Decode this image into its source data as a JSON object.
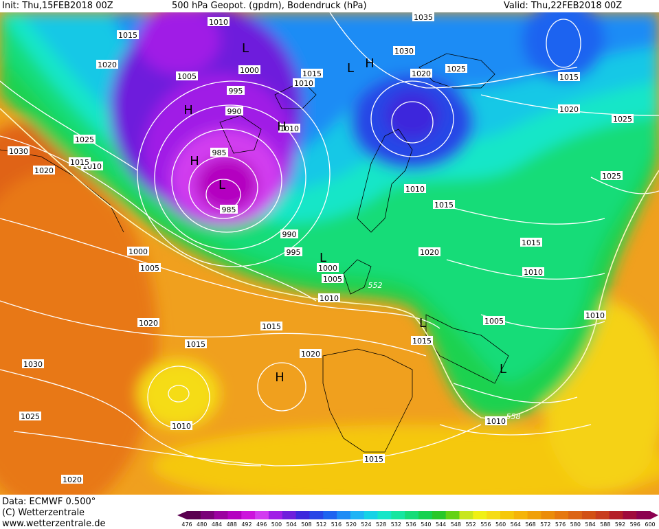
{
  "header": {
    "init": "Init: Thu,15FEB2018 00Z",
    "title": "500 hPa Geopot. (gpdm), Bodendruck (hPa)",
    "valid": "Valid: Thu,22FEB2018 00Z"
  },
  "footer": {
    "data_line": "Data: ECMWF   0.500°",
    "copyright": "(C) Wetterzentrale",
    "url": "www.wetterzentrale.de"
  },
  "colorbar": {
    "values": [
      476,
      480,
      484,
      488,
      492,
      496,
      500,
      504,
      508,
      512,
      516,
      520,
      524,
      528,
      532,
      536,
      540,
      544,
      548,
      552,
      556,
      560,
      564,
      568,
      572,
      576,
      580,
      584,
      588,
      592,
      596,
      600
    ],
    "colors": [
      "#5a0050",
      "#7a0078",
      "#9b00a0",
      "#b400c0",
      "#cc14dc",
      "#d23cf0",
      "#a01ee6",
      "#6e1edc",
      "#3c28dc",
      "#2846e6",
      "#1e64f0",
      "#1e8cf5",
      "#1eb4f5",
      "#14d2e6",
      "#14e6c8",
      "#14e6a0",
      "#14dc78",
      "#14d250",
      "#28c828",
      "#64d214",
      "#c8e61e",
      "#f0f014",
      "#f5dc14",
      "#f5c80a",
      "#f5b40a",
      "#f0a00a",
      "#eb8c0a",
      "#e6780f",
      "#dc6414",
      "#d25014",
      "#c83c1e",
      "#b41e28",
      "#a00a3c",
      "#8c0050"
    ]
  },
  "map": {
    "pressure_labels": [
      {
        "text": "1010",
        "id": "p1"
      },
      {
        "text": "1015",
        "id": "p2"
      },
      {
        "text": "1020",
        "id": "p3"
      },
      {
        "text": "1005",
        "id": "p4"
      },
      {
        "text": "1000",
        "id": "p5"
      },
      {
        "text": "995",
        "id": "p6"
      },
      {
        "text": "990",
        "id": "p7"
      },
      {
        "text": "985",
        "id": "p8"
      },
      {
        "text": "985",
        "id": "p9"
      },
      {
        "text": "990",
        "id": "p10"
      },
      {
        "text": "995",
        "id": "p11"
      },
      {
        "text": "1000",
        "id": "p12"
      },
      {
        "text": "1005",
        "id": "p13"
      },
      {
        "text": "1010",
        "id": "p14"
      },
      {
        "text": "1015",
        "id": "p15"
      },
      {
        "text": "1020",
        "id": "p16"
      },
      {
        "text": "1030",
        "id": "p17"
      },
      {
        "text": "1025",
        "id": "p18"
      },
      {
        "text": "1035",
        "id": "p19"
      },
      {
        "text": "1030",
        "id": "p20"
      },
      {
        "text": "1020",
        "id": "p21"
      },
      {
        "text": "1025",
        "id": "p22"
      },
      {
        "text": "1015",
        "id": "p23"
      },
      {
        "text": "1020",
        "id": "p24"
      },
      {
        "text": "1025",
        "id": "p25"
      },
      {
        "text": "1025",
        "id": "p26"
      },
      {
        "text": "1010",
        "id": "p27"
      },
      {
        "text": "1015",
        "id": "p28"
      },
      {
        "text": "1020",
        "id": "p29"
      },
      {
        "text": "1015",
        "id": "p30"
      },
      {
        "text": "1010",
        "id": "p31"
      },
      {
        "text": "1005",
        "id": "p32"
      },
      {
        "text": "1010",
        "id": "p33"
      },
      {
        "text": "1015",
        "id": "p34"
      },
      {
        "text": "1010",
        "id": "p35"
      },
      {
        "text": "1020",
        "id": "p36"
      },
      {
        "text": "1030",
        "id": "p37"
      },
      {
        "text": "1025",
        "id": "p38"
      },
      {
        "text": "1020",
        "id": "p39"
      },
      {
        "text": "1015",
        "id": "p40"
      },
      {
        "text": "1010",
        "id": "p41"
      },
      {
        "text": "1020",
        "id": "p42"
      },
      {
        "text": "1015",
        "id": "p43"
      },
      {
        "text": "1010",
        "id": "p44"
      },
      {
        "text": "1015",
        "id": "p45"
      },
      {
        "text": "1020",
        "id": "p46"
      },
      {
        "text": "1010",
        "id": "p47"
      },
      {
        "text": "1025",
        "id": "p48"
      },
      {
        "text": "1005",
        "id": "p49"
      },
      {
        "text": "1000",
        "id": "p50"
      },
      {
        "text": "1015",
        "id": "p51"
      },
      {
        "text": "1010",
        "id": "p52"
      },
      {
        "text": "1010",
        "id": "p53"
      }
    ],
    "height_labels": [
      {
        "text": "552"
      },
      {
        "text": "558"
      }
    ],
    "centers": [
      {
        "text": "L"
      },
      {
        "text": "L"
      },
      {
        "text": "L"
      },
      {
        "text": "H"
      },
      {
        "text": "H"
      },
      {
        "text": "H"
      },
      {
        "text": "L"
      },
      {
        "text": "L"
      },
      {
        "text": "H"
      },
      {
        "text": "L"
      },
      {
        "text": "L"
      },
      {
        "text": "H"
      },
      {
        "text": "L"
      }
    ]
  }
}
